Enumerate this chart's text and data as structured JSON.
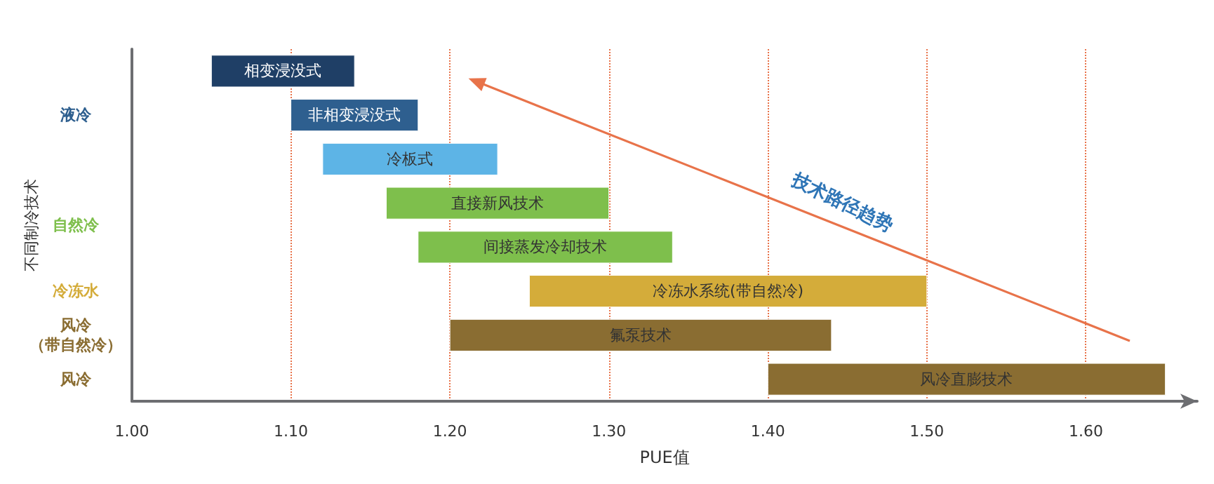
{
  "chart_data": {
    "type": "bar",
    "orientation": "horizontal",
    "xlabel": "PUE值",
    "ylabel": "不同制冷技术",
    "categories": [
      "相变浸没式",
      "非相变浸没式",
      "冷板式",
      "直接新风技术",
      "间接蒸发冷却技术",
      "冷冻水系统(带自然冷)",
      "氟泵技术",
      "风冷直膨技术"
    ],
    "base": [
      1.05,
      1.1,
      1.12,
      1.16,
      1.18,
      1.25,
      1.2,
      1.4
    ],
    "values": [
      0.09,
      0.08,
      0.11,
      0.14,
      0.16,
      0.25,
      0.24,
      0.25
    ],
    "colors": [
      "#1f3f66",
      "#2e5f8f",
      "#5db4e6",
      "#7ebf4c",
      "#7ebf4c",
      "#d4ac3a",
      "#8a6d32",
      "#8a6d32"
    ],
    "xlim": [
      1.0,
      1.67
    ],
    "xticks": [
      {
        "value": 1.0,
        "label": "1.00"
      },
      {
        "value": 1.1,
        "label": "1.10"
      },
      {
        "value": 1.2,
        "label": "1.20"
      },
      {
        "value": 1.3,
        "label": "1.30"
      },
      {
        "value": 1.4,
        "label": "1.40"
      },
      {
        "value": 1.5,
        "label": "1.50"
      },
      {
        "value": 1.6,
        "label": "1.60"
      }
    ],
    "grid": "x",
    "tick_labels": "x",
    "annotations": [
      "液冷",
      "自然冷",
      "冷冻水",
      "风冷（带自然冷）",
      "风冷",
      "技术路径趋势"
    ]
  }
}
